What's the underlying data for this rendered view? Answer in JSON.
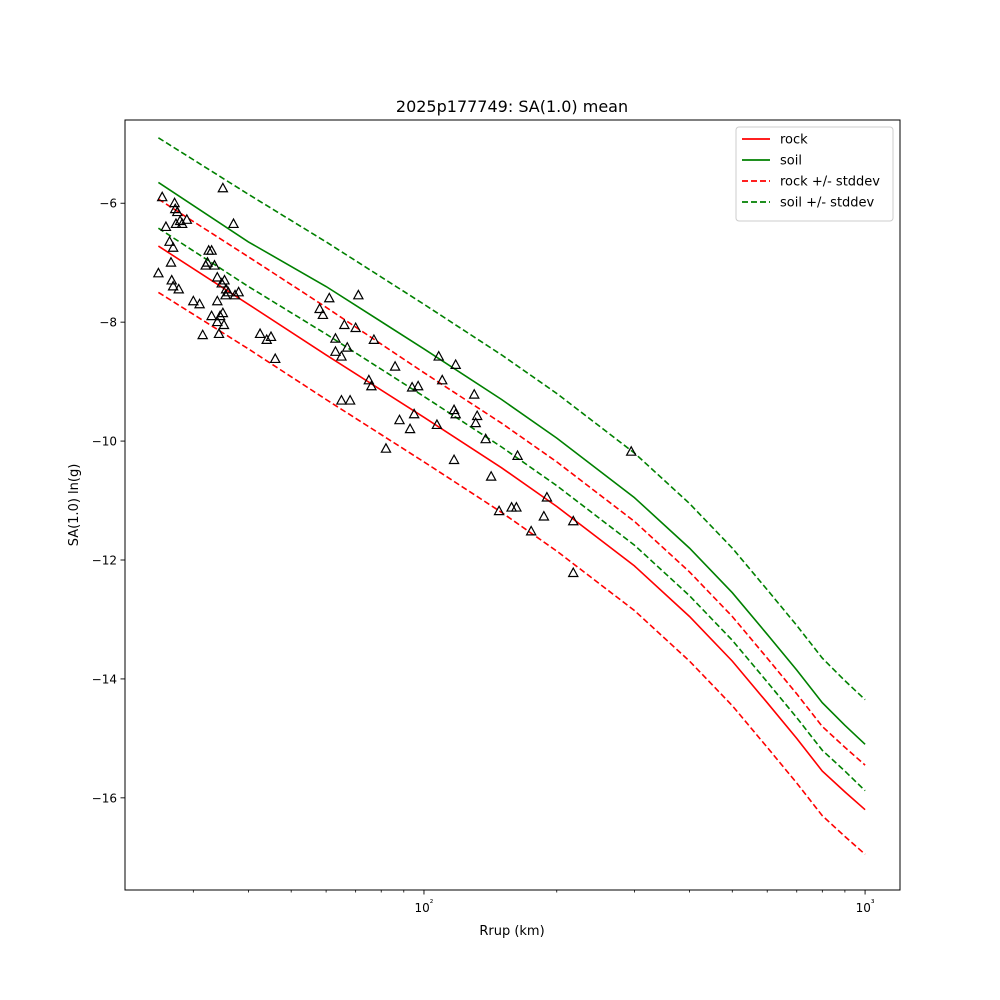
{
  "chart_data": {
    "type": "scatter",
    "title": "2025p177749: SA(1.0) mean",
    "xlabel": "Rrup (km)",
    "ylabel": "SA(1.0) ln(g)",
    "xscale": "log",
    "xlim": [
      21,
      1200
    ],
    "ylim": [
      -17.55,
      -4.6
    ],
    "grid": false,
    "legend_position": "top-right",
    "x_major_ticks": [
      100,
      1000
    ],
    "x_tick_labels": [
      "10²",
      "10³"
    ],
    "x_minor_ticks": [
      30,
      40,
      50,
      60,
      70,
      80,
      90,
      200,
      300,
      400,
      500,
      600,
      700,
      800,
      900
    ],
    "y_ticks": [
      -16,
      -14,
      -12,
      -10,
      -8,
      -6
    ],
    "y_tick_labels": [
      "−16",
      "−14",
      "−12",
      "−10",
      "−8",
      "−6"
    ],
    "series": [
      {
        "name": "rock",
        "style": "solid",
        "color": "#ff0000",
        "x": [
          25,
          40,
          60,
          100,
          150,
          200,
          300,
          400,
          500,
          600,
          700,
          800,
          900,
          1000
        ],
        "y": [
          -6.72,
          -7.7,
          -8.55,
          -9.6,
          -10.45,
          -11.1,
          -12.1,
          -12.95,
          -13.7,
          -14.4,
          -15.0,
          -15.55,
          -15.9,
          -16.2
        ]
      },
      {
        "name": "soil",
        "style": "solid",
        "color": "#008000",
        "x": [
          25,
          40,
          60,
          100,
          150,
          200,
          300,
          400,
          500,
          600,
          700,
          800,
          900,
          1000
        ],
        "y": [
          -5.65,
          -6.65,
          -7.4,
          -8.45,
          -9.3,
          -9.95,
          -10.95,
          -11.8,
          -12.55,
          -13.25,
          -13.85,
          -14.4,
          -14.78,
          -15.1
        ]
      },
      {
        "name": "rock +/- stddev",
        "style": "dashed",
        "color": "#ff0000",
        "x": [
          25,
          40,
          60,
          100,
          150,
          200,
          300,
          400,
          500,
          600,
          700,
          800,
          900,
          1000
        ],
        "y": [
          -5.93,
          -6.9,
          -7.75,
          -8.85,
          -9.7,
          -10.35,
          -11.35,
          -12.2,
          -12.95,
          -13.65,
          -14.25,
          -14.8,
          -15.15,
          -15.45
        ]
      },
      {
        "name": "",
        "style": "dashed",
        "color": "#ff0000",
        "x": [
          25,
          40,
          60,
          100,
          150,
          200,
          300,
          400,
          500,
          600,
          700,
          800,
          900,
          1000
        ],
        "y": [
          -7.5,
          -8.45,
          -9.3,
          -10.35,
          -11.2,
          -11.85,
          -12.85,
          -13.7,
          -14.45,
          -15.15,
          -15.75,
          -16.3,
          -16.65,
          -16.95
        ]
      },
      {
        "name": "soil +/- stddev",
        "style": "dashed",
        "color": "#008000",
        "x": [
          25,
          40,
          60,
          100,
          150,
          200,
          300,
          400,
          500,
          600,
          700,
          800,
          900,
          1000
        ],
        "y": [
          -4.9,
          -5.85,
          -6.65,
          -7.7,
          -8.55,
          -9.2,
          -10.2,
          -11.05,
          -11.8,
          -12.5,
          -13.1,
          -13.65,
          -14.03,
          -14.35
        ]
      },
      {
        "name": "",
        "style": "dashed",
        "color": "#008000",
        "x": [
          25,
          40,
          60,
          100,
          150,
          200,
          300,
          400,
          500,
          600,
          700,
          800,
          900,
          1000
        ],
        "y": [
          -6.42,
          -7.4,
          -8.2,
          -9.25,
          -10.1,
          -10.75,
          -11.75,
          -12.6,
          -13.35,
          -14.05,
          -14.65,
          -15.2,
          -15.55,
          -15.88
        ]
      }
    ],
    "observations": {
      "marker": "triangle",
      "color": "#000000",
      "points": [
        [
          25,
          -7.18
        ],
        [
          25.5,
          -5.9
        ],
        [
          26,
          -6.4
        ],
        [
          26.5,
          -6.65
        ],
        [
          26.7,
          -7.0
        ],
        [
          26.8,
          -7.3
        ],
        [
          27,
          -6.75
        ],
        [
          27,
          -7.4
        ],
        [
          27.2,
          -6.0
        ],
        [
          27.3,
          -6.1
        ],
        [
          27.4,
          -6.35
        ],
        [
          27.6,
          -6.15
        ],
        [
          27.8,
          -7.45
        ],
        [
          28,
          -6.3
        ],
        [
          28.3,
          -6.35
        ],
        [
          29,
          -6.28
        ],
        [
          30,
          -7.65
        ],
        [
          31,
          -7.7
        ],
        [
          31.5,
          -8.22
        ],
        [
          32,
          -7.05
        ],
        [
          32.3,
          -7.0
        ],
        [
          32.5,
          -6.8
        ],
        [
          33,
          -6.8
        ],
        [
          33,
          -7.9
        ],
        [
          33.5,
          -7.05
        ],
        [
          34,
          -8.0
        ],
        [
          34,
          -7.25
        ],
        [
          34,
          -7.65
        ],
        [
          34.3,
          -8.2
        ],
        [
          34.5,
          -7.9
        ],
        [
          34.8,
          -7.35
        ],
        [
          35,
          -7.85
        ],
        [
          35,
          -5.75
        ],
        [
          35.2,
          -8.05
        ],
        [
          35.3,
          -7.3
        ],
        [
          35.5,
          -7.55
        ],
        [
          35.6,
          -7.45
        ],
        [
          36,
          -7.5
        ],
        [
          37,
          -6.35
        ],
        [
          37.3,
          -7.55
        ],
        [
          38,
          -7.5
        ],
        [
          42.5,
          -8.2
        ],
        [
          44,
          -8.3
        ],
        [
          45,
          -8.25
        ],
        [
          46,
          -8.62
        ],
        [
          58,
          -7.78
        ],
        [
          59,
          -7.88
        ],
        [
          61,
          -7.6
        ],
        [
          63,
          -8.28
        ],
        [
          63,
          -8.5
        ],
        [
          65,
          -8.58
        ],
        [
          65,
          -9.32
        ],
        [
          66,
          -8.05
        ],
        [
          67,
          -8.43
        ],
        [
          68,
          -9.32
        ],
        [
          70,
          -8.1
        ],
        [
          71,
          -7.55
        ],
        [
          75,
          -8.98
        ],
        [
          76,
          -9.08
        ],
        [
          77,
          -8.3
        ],
        [
          82,
          -10.13
        ],
        [
          86,
          -8.75
        ],
        [
          88,
          -9.65
        ],
        [
          93,
          -9.8
        ],
        [
          94,
          -9.1
        ],
        [
          95,
          -9.55
        ],
        [
          97,
          -9.08
        ],
        [
          107,
          -9.73
        ],
        [
          108,
          -8.58
        ],
        [
          110,
          -8.98
        ],
        [
          117,
          -10.32
        ],
        [
          117,
          -9.48
        ],
        [
          118,
          -9.55
        ],
        [
          118,
          -8.72
        ],
        [
          130,
          -9.22
        ],
        [
          131,
          -9.7
        ],
        [
          132,
          -9.58
        ],
        [
          138,
          -9.97
        ],
        [
          142,
          -10.6
        ],
        [
          148,
          -11.18
        ],
        [
          158,
          -11.12
        ],
        [
          162,
          -11.12
        ],
        [
          163,
          -10.25
        ],
        [
          175,
          -11.52
        ],
        [
          187,
          -11.27
        ],
        [
          190,
          -10.95
        ],
        [
          218,
          -11.35
        ],
        [
          218,
          -12.22
        ],
        [
          295,
          -10.18
        ]
      ]
    }
  }
}
